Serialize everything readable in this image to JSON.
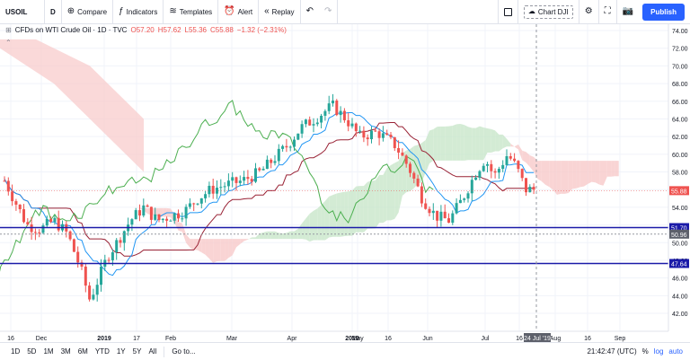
{
  "toolbar": {
    "symbol": "USOIL",
    "interval": "D",
    "compare": "Compare",
    "indicators": "Indicators",
    "templates": "Templates",
    "alert": "Alert",
    "replay": "Replay",
    "layout_name": "Chart DJI",
    "publish": "Publish"
  },
  "legend": {
    "title": "CFDs on WTI Crude Oil · 1D · TVC",
    "open": "O57.20",
    "high": "H57.62",
    "low": "L55.36",
    "close": "C55.88",
    "change": "−1.32 (−2.31%)"
  },
  "price_axis": {
    "ticks": [
      "74.00",
      "72.00",
      "70.00",
      "68.00",
      "66.00",
      "64.00",
      "62.00",
      "60.00",
      "58.00",
      "56.00",
      "54.00",
      "52.00",
      "50.00",
      "48.00",
      "46.00",
      "44.00",
      "42.00"
    ],
    "current_price": "55.88",
    "line_1": "51.70",
    "line_2": "50.96",
    "line_3": "47.64"
  },
  "time_axis": {
    "labels": [
      "16",
      "Dec",
      "2019",
      "17",
      "Feb",
      "Mar",
      "Apr",
      "2019",
      "May",
      "16",
      "Jun",
      "Jul",
      "16",
      "Aug",
      "16",
      "Sep"
    ],
    "cursor_date": "24 Jul '19"
  },
  "bottombar": {
    "timeframes": [
      "1D",
      "5D",
      "1M",
      "3M",
      "6M",
      "YTD",
      "1Y",
      "5Y",
      "All"
    ],
    "goto": "Go to...",
    "clock": "21:42:47 (UTC)",
    "percent": "%",
    "log": "log",
    "auto": "auto"
  },
  "colors": {
    "up": "#26a69a",
    "down": "#ef5350",
    "tenkan": "#2196f3",
    "kijun": "#992235",
    "chikou": "#4caf50",
    "cloud_bear": "#f8c9c9",
    "cloud_bull": "#c8e6c9",
    "hline": "#1a1aa8"
  }
}
